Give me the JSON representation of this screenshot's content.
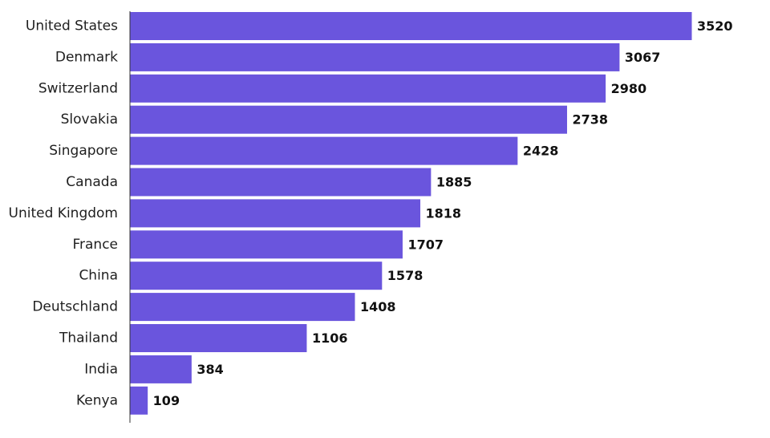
{
  "chart_data": {
    "type": "bar",
    "orientation": "horizontal",
    "categories": [
      "United States",
      "Denmark",
      "Switzerland",
      "Slovakia",
      "Singapore",
      "Canada",
      "United Kingdom",
      "France",
      "China",
      "Deutschland",
      "Thailand",
      "India",
      "Kenya"
    ],
    "values": [
      3520,
      3067,
      2980,
      2738,
      2428,
      1885,
      1818,
      1707,
      1578,
      1408,
      1106,
      384,
      109
    ],
    "data_labels": [
      "3520",
      "3067",
      "2980",
      "2738",
      "2428",
      "1885",
      "1818",
      "1707",
      "1578",
      "1408",
      "1106",
      "384",
      "109"
    ],
    "title": "",
    "xlabel": "",
    "ylabel": "",
    "xlim": [
      0,
      3520
    ],
    "grid": false,
    "legend": "none",
    "colors": {
      "bar": "#6a55dd",
      "axis": "#333333"
    }
  }
}
